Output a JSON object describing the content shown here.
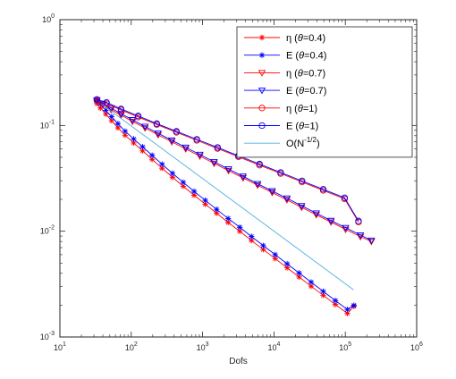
{
  "chart_data": {
    "type": "line",
    "xlabel": "Dofs",
    "x_scale": "log",
    "y_scale": "log",
    "xlim": [
      10,
      1000000
    ],
    "ylim": [
      0.001,
      1
    ],
    "x_ticks": [
      {
        "value": 10,
        "base": "10",
        "exp": "1"
      },
      {
        "value": 100,
        "base": "10",
        "exp": "2"
      },
      {
        "value": 1000,
        "base": "10",
        "exp": "3"
      },
      {
        "value": 10000,
        "base": "10",
        "exp": "4"
      },
      {
        "value": 100000,
        "base": "10",
        "exp": "5"
      },
      {
        "value": 1000000,
        "base": "10",
        "exp": "6"
      }
    ],
    "y_ticks": [
      {
        "value": 0.001,
        "base": "10",
        "exp": "-3"
      },
      {
        "value": 0.01,
        "base": "10",
        "exp": "-2"
      },
      {
        "value": 0.1,
        "base": "10",
        "exp": "-1"
      },
      {
        "value": 1,
        "base": "10",
        "exp": "0"
      }
    ],
    "grid": false,
    "legend_position": "top-right",
    "series": [
      {
        "legend": {
          "sym": "η",
          "param": "θ",
          "val": "=0.4)"
        },
        "color": "#ff0000",
        "marker": "star",
        "x": [
          33,
          37,
          44,
          53,
          65,
          82,
          108,
          144,
          196,
          270,
          378,
          535,
          760,
          1090,
          1570,
          2280,
          3320,
          4840,
          7080,
          10400,
          15300,
          22500,
          33200,
          49000,
          72500,
          107000,
          132000
        ],
        "y": [
          0.161,
          0.146,
          0.128,
          0.111,
          0.0951,
          0.0808,
          0.0683,
          0.0575,
          0.0478,
          0.0394,
          0.0324,
          0.0266,
          0.0219,
          0.018,
          0.0148,
          0.0121,
          0.00998,
          0.00817,
          0.00671,
          0.00551,
          0.00451,
          0.00369,
          0.00302,
          0.00248,
          0.00203,
          0.00167,
          0.00195
        ]
      },
      {
        "legend": {
          "sym": "E",
          "param": "θ",
          "val": "=0.4)"
        },
        "color": "#0000ff",
        "marker": "star",
        "x": [
          33,
          37,
          44,
          53,
          65,
          82,
          108,
          144,
          196,
          270,
          378,
          535,
          760,
          1090,
          1570,
          2280,
          3320,
          4840,
          7080,
          10400,
          15300,
          22500,
          33200,
          49000,
          72500,
          107000,
          132000
        ],
        "y": [
          0.176,
          0.16,
          0.139,
          0.121,
          0.104,
          0.0881,
          0.0745,
          0.0628,
          0.0522,
          0.043,
          0.0353,
          0.029,
          0.0238,
          0.0196,
          0.0161,
          0.0132,
          0.0109,
          0.00891,
          0.00731,
          0.006,
          0.00492,
          0.00403,
          0.0033,
          0.0027,
          0.00221,
          0.00182,
          0.00199
        ]
      },
      {
        "legend": {
          "sym": "η",
          "param": "θ",
          "val": "=0.7)"
        },
        "color": "#ff0000",
        "marker": "triangle-down",
        "x": [
          33,
          40,
          52,
          72,
          104,
          156,
          238,
          370,
          580,
          915,
          1450,
          2310,
          3690,
          5900,
          9450,
          15200,
          24400,
          39200,
          63000,
          101000,
          163000,
          232000
        ],
        "y": [
          0.168,
          0.156,
          0.141,
          0.125,
          0.109,
          0.0945,
          0.0815,
          0.07,
          0.06,
          0.0513,
          0.0438,
          0.0374,
          0.0319,
          0.0272,
          0.0232,
          0.0198,
          0.0168,
          0.0143,
          0.0122,
          0.0104,
          0.00888,
          0.008
        ]
      },
      {
        "legend": {
          "sym": "E",
          "param": "θ",
          "val": "=0.7)"
        },
        "color": "#0000ff",
        "marker": "triangle-down",
        "x": [
          33,
          40,
          52,
          72,
          104,
          156,
          238,
          370,
          580,
          915,
          1450,
          2310,
          3690,
          5900,
          9450,
          15200,
          24400,
          39200,
          63000,
          101000,
          163000,
          232000
        ],
        "y": [
          0.174,
          0.161,
          0.146,
          0.129,
          0.113,
          0.0978,
          0.0843,
          0.0724,
          0.062,
          0.0531,
          0.0453,
          0.0387,
          0.033,
          0.0281,
          0.024,
          0.0205,
          0.0174,
          0.0148,
          0.0126,
          0.0108,
          0.00919,
          0.0082
        ]
      },
      {
        "legend": {
          "sym": "η",
          "param": "θ",
          "val": "=1)"
        },
        "color": "#ff0000",
        "marker": "circle",
        "x": [
          33,
          45,
          72,
          125,
          228,
          430,
          830,
          1620,
          3180,
          6280,
          12400,
          24700,
          49100,
          97800,
          153000
        ],
        "y": [
          0.172,
          0.161,
          0.14,
          0.12,
          0.102,
          0.086,
          0.0723,
          0.0605,
          0.0505,
          0.0421,
          0.0351,
          0.0292,
          0.0243,
          0.0202,
          0.0122
        ]
      },
      {
        "legend": {
          "sym": "E",
          "param": "θ",
          "val": "=1)"
        },
        "color": "#0000ff",
        "marker": "circle",
        "x": [
          33,
          45,
          72,
          125,
          228,
          430,
          830,
          1620,
          3180,
          6280,
          12400,
          24700,
          49100,
          97800,
          153000
        ],
        "y": [
          0.176,
          0.165,
          0.143,
          0.123,
          0.104,
          0.0879,
          0.0739,
          0.0619,
          0.0517,
          0.0431,
          0.0359,
          0.0299,
          0.0249,
          0.0207,
          0.0125
        ]
      },
      {
        "legend": {
          "sym": "O(N",
          "sup": "-1/2",
          "tail": ")"
        },
        "color": "#4db0e0",
        "marker": "none",
        "x": [
          38,
          130000
        ],
        "y": [
          0.16,
          0.0028
        ]
      }
    ]
  }
}
